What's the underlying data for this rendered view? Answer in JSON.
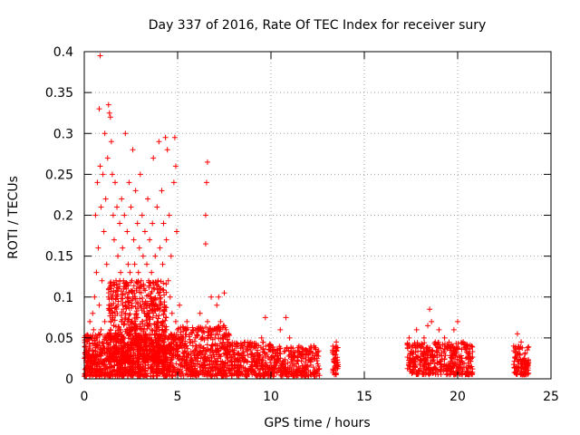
{
  "chart_data": {
    "type": "scatter",
    "title": "Day 337 of 2016, Rate Of TEC Index for receiver sury",
    "xlabel": "GPS time / hours",
    "ylabel": "ROTI / TECUs",
    "xlim": [
      0,
      25
    ],
    "ylim": [
      0,
      0.4
    ],
    "x_ticks": [
      0,
      5,
      10,
      15,
      20,
      25
    ],
    "x_tick_labels": [
      "0",
      "5",
      "10",
      "15",
      "20",
      "25"
    ],
    "y_ticks": [
      0,
      0.05,
      0.1,
      0.15,
      0.2,
      0.25,
      0.3,
      0.35,
      0.4
    ],
    "y_tick_labels": [
      "0",
      "0.05",
      "0.1",
      "0.15",
      "0.2",
      "0.25",
      "0.3",
      "0.35",
      "0.4"
    ],
    "grid": true,
    "marker": "+",
    "marker_color": "#ff0000",
    "points": [
      [
        0.1,
        0.02
      ],
      [
        0.1,
        0.035
      ],
      [
        0.15,
        0.045
      ],
      [
        0.2,
        0.015
      ],
      [
        0.2,
        0.03
      ],
      [
        0.3,
        0.04
      ],
      [
        0.3,
        0.07
      ],
      [
        0.35,
        0.025
      ],
      [
        0.4,
        0.05
      ],
      [
        0.45,
        0.08
      ],
      [
        0.5,
        0.03
      ],
      [
        0.5,
        0.06
      ],
      [
        0.55,
        0.1
      ],
      [
        0.6,
        0.2
      ],
      [
        0.6,
        0.04
      ],
      [
        0.65,
        0.13
      ],
      [
        0.7,
        0.24
      ],
      [
        0.7,
        0.05
      ],
      [
        0.75,
        0.16
      ],
      [
        0.8,
        0.33
      ],
      [
        0.8,
        0.09
      ],
      [
        0.85,
        0.26
      ],
      [
        0.85,
        0.395
      ],
      [
        0.9,
        0.21
      ],
      [
        0.9,
        0.06
      ],
      [
        0.95,
        0.12
      ],
      [
        1.0,
        0.25
      ],
      [
        1.0,
        0.04
      ],
      [
        1.05,
        0.18
      ],
      [
        1.1,
        0.3
      ],
      [
        1.1,
        0.07
      ],
      [
        1.15,
        0.22
      ],
      [
        1.2,
        0.14
      ],
      [
        1.2,
        0.05
      ],
      [
        1.25,
        0.27
      ],
      [
        1.3,
        0.335
      ],
      [
        1.3,
        0.1
      ],
      [
        1.35,
        0.325
      ],
      [
        1.4,
        0.32
      ],
      [
        1.4,
        0.06
      ],
      [
        1.45,
        0.29
      ],
      [
        1.5,
        0.25
      ],
      [
        1.5,
        0.08
      ],
      [
        1.55,
        0.2
      ],
      [
        1.6,
        0.17
      ],
      [
        1.6,
        0.04
      ],
      [
        1.65,
        0.24
      ],
      [
        1.7,
        0.12
      ],
      [
        1.7,
        0.05
      ],
      [
        1.75,
        0.21
      ],
      [
        1.8,
        0.15
      ],
      [
        1.8,
        0.09
      ],
      [
        1.85,
        0.11
      ],
      [
        1.9,
        0.19
      ],
      [
        1.9,
        0.06
      ],
      [
        1.95,
        0.13
      ],
      [
        2.0,
        0.22
      ],
      [
        2.0,
        0.07
      ],
      [
        2.05,
        0.16
      ],
      [
        2.1,
        0.12
      ],
      [
        2.1,
        0.05
      ],
      [
        2.15,
        0.2
      ],
      [
        2.2,
        0.3
      ],
      [
        2.2,
        0.08
      ],
      [
        2.25,
        0.11
      ],
      [
        2.3,
        0.18
      ],
      [
        2.3,
        0.06
      ],
      [
        2.35,
        0.14
      ],
      [
        2.4,
        0.24
      ],
      [
        2.4,
        0.09
      ],
      [
        2.45,
        0.13
      ],
      [
        2.5,
        0.21
      ],
      [
        2.5,
        0.07
      ],
      [
        2.55,
        0.12
      ],
      [
        2.6,
        0.28
      ],
      [
        2.6,
        0.1
      ],
      [
        2.65,
        0.17
      ],
      [
        2.7,
        0.14
      ],
      [
        2.7,
        0.06
      ],
      [
        2.75,
        0.23
      ],
      [
        2.8,
        0.11
      ],
      [
        2.8,
        0.08
      ],
      [
        2.85,
        0.19
      ],
      [
        2.9,
        0.13
      ],
      [
        2.9,
        0.05
      ],
      [
        2.95,
        0.16
      ],
      [
        3.0,
        0.25
      ],
      [
        3.0,
        0.09
      ],
      [
        3.05,
        0.12
      ],
      [
        3.1,
        0.2
      ],
      [
        3.1,
        0.07
      ],
      [
        3.15,
        0.15
      ],
      [
        3.2,
        0.11
      ],
      [
        3.2,
        0.06
      ],
      [
        3.25,
        0.18
      ],
      [
        3.3,
        0.09
      ],
      [
        3.3,
        0.04
      ],
      [
        3.35,
        0.14
      ],
      [
        3.4,
        0.22
      ],
      [
        3.4,
        0.08
      ],
      [
        3.45,
        0.12
      ],
      [
        3.5,
        0.17
      ],
      [
        3.5,
        0.05
      ],
      [
        3.55,
        0.1
      ],
      [
        3.6,
        0.13
      ],
      [
        3.6,
        0.06
      ],
      [
        3.65,
        0.19
      ],
      [
        3.7,
        0.27
      ],
      [
        3.7,
        0.08
      ],
      [
        3.75,
        0.11
      ],
      [
        3.8,
        0.15
      ],
      [
        3.8,
        0.05
      ],
      [
        3.85,
        0.09
      ],
      [
        3.9,
        0.21
      ],
      [
        3.9,
        0.07
      ],
      [
        3.95,
        0.12
      ],
      [
        4.0,
        0.29
      ],
      [
        4.0,
        0.06
      ],
      [
        4.05,
        0.16
      ],
      [
        4.1,
        0.11
      ],
      [
        4.1,
        0.04
      ],
      [
        4.15,
        0.23
      ],
      [
        4.2,
        0.14
      ],
      [
        4.2,
        0.07
      ],
      [
        4.25,
        0.19
      ],
      [
        4.3,
        0.09
      ],
      [
        4.3,
        0.05
      ],
      [
        4.35,
        0.295
      ],
      [
        4.4,
        0.17
      ],
      [
        4.4,
        0.06
      ],
      [
        4.45,
        0.28
      ],
      [
        4.5,
        0.12
      ],
      [
        4.5,
        0.05
      ],
      [
        4.55,
        0.2
      ],
      [
        4.6,
        0.1
      ],
      [
        4.6,
        0.04
      ],
      [
        4.65,
        0.15
      ],
      [
        4.7,
        0.08
      ],
      [
        4.8,
        0.24
      ],
      [
        4.8,
        0.05
      ],
      [
        4.85,
        0.295
      ],
      [
        4.9,
        0.26
      ],
      [
        4.9,
        0.07
      ],
      [
        4.95,
        0.18
      ],
      [
        5.0,
        0.06
      ],
      [
        5.0,
        0.03
      ],
      [
        5.1,
        0.09
      ],
      [
        5.2,
        0.04
      ],
      [
        5.3,
        0.05
      ],
      [
        5.5,
        0.07
      ],
      [
        5.6,
        0.03
      ],
      [
        5.8,
        0.06
      ],
      [
        6.0,
        0.04
      ],
      [
        6.2,
        0.08
      ],
      [
        6.3,
        0.05
      ],
      [
        6.5,
        0.165
      ],
      [
        6.5,
        0.2
      ],
      [
        6.55,
        0.24
      ],
      [
        6.6,
        0.265
      ],
      [
        6.6,
        0.07
      ],
      [
        6.7,
        0.06
      ],
      [
        6.8,
        0.1
      ],
      [
        7.0,
        0.05
      ],
      [
        7.1,
        0.09
      ],
      [
        7.2,
        0.1
      ],
      [
        7.3,
        0.07
      ],
      [
        7.5,
        0.105
      ],
      [
        7.6,
        0.06
      ],
      [
        7.8,
        0.04
      ],
      [
        8.0,
        0.03
      ],
      [
        8.5,
        0.04
      ],
      [
        9.0,
        0.03
      ],
      [
        9.5,
        0.05
      ],
      [
        9.7,
        0.075
      ],
      [
        10.0,
        0.04
      ],
      [
        10.5,
        0.06
      ],
      [
        10.8,
        0.075
      ],
      [
        11.0,
        0.05
      ],
      [
        11.5,
        0.04
      ],
      [
        12.0,
        0.03
      ],
      [
        12.3,
        0.04
      ],
      [
        13.3,
        0.035
      ],
      [
        13.4,
        0.02
      ],
      [
        13.5,
        0.045
      ],
      [
        13.6,
        0.015
      ],
      [
        17.4,
        0.05
      ],
      [
        17.6,
        0.03
      ],
      [
        17.8,
        0.06
      ],
      [
        18.0,
        0.04
      ],
      [
        18.2,
        0.05
      ],
      [
        18.4,
        0.065
      ],
      [
        18.5,
        0.085
      ],
      [
        18.6,
        0.07
      ],
      [
        18.8,
        0.045
      ],
      [
        19.0,
        0.06
      ],
      [
        19.3,
        0.05
      ],
      [
        19.5,
        0.04
      ],
      [
        19.8,
        0.06
      ],
      [
        20.0,
        0.07
      ],
      [
        20.3,
        0.045
      ],
      [
        20.6,
        0.03
      ],
      [
        23.0,
        0.04
      ],
      [
        23.2,
        0.055
      ],
      [
        23.4,
        0.045
      ],
      [
        23.6,
        0.03
      ],
      [
        23.8,
        0.02
      ]
    ],
    "dense_bands": [
      {
        "x_start": 0.0,
        "x_end": 5.0,
        "y_low": 0.003,
        "y_high": 0.055,
        "n": 950
      },
      {
        "x_start": 1.3,
        "x_end": 4.4,
        "y_low": 0.02,
        "y_high": 0.12,
        "n": 600
      },
      {
        "x_start": 5.0,
        "x_end": 7.8,
        "y_low": 0.003,
        "y_high": 0.065,
        "n": 450
      },
      {
        "x_start": 7.8,
        "x_end": 10.0,
        "y_low": 0.003,
        "y_high": 0.045,
        "n": 280
      },
      {
        "x_start": 10.0,
        "x_end": 12.6,
        "y_low": 0.003,
        "y_high": 0.04,
        "n": 280
      },
      {
        "x_start": 13.3,
        "x_end": 13.6,
        "y_low": 0.005,
        "y_high": 0.04,
        "n": 45
      },
      {
        "x_start": 17.3,
        "x_end": 20.8,
        "y_low": 0.005,
        "y_high": 0.045,
        "n": 420
      },
      {
        "x_start": 23.0,
        "x_end": 23.8,
        "y_low": 0.005,
        "y_high": 0.04,
        "n": 110
      }
    ]
  }
}
